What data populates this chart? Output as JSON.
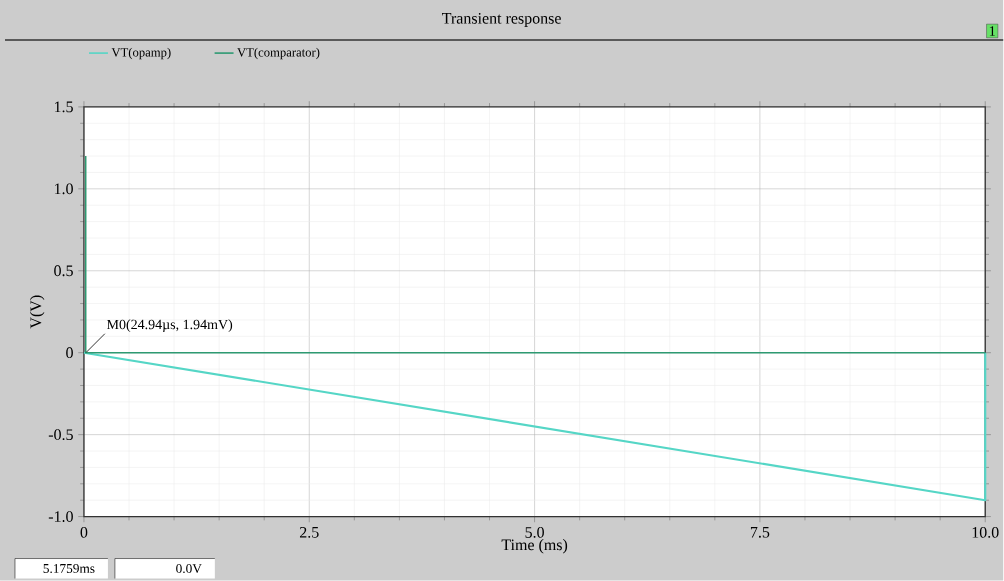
{
  "chart_data": {
    "type": "line",
    "title": "Transient response",
    "xlabel": "Time (ms)",
    "ylabel": "V(V)",
    "xlim": [
      0,
      10
    ],
    "ylim": [
      -1.0,
      1.5
    ],
    "xticks": [
      0,
      {
        "value": 2.5,
        "label": "2.5"
      },
      {
        "value": 5,
        "label": "5.0"
      },
      {
        "value": 7.5,
        "label": "7.5"
      },
      {
        "value": 10,
        "label": "10.0"
      }
    ],
    "yticks": [
      {
        "value": -1,
        "label": "-1.0"
      },
      -0.5,
      0,
      0.5,
      {
        "value": 1,
        "label": "1.0"
      },
      1.5
    ],
    "grid": true,
    "legend": "top left",
    "marker": "none",
    "line_style": "solid",
    "series": [
      {
        "name": "VT(opamp)",
        "color": "#55d6c6",
        "x": [
          0,
          10,
          10
        ],
        "values": [
          0,
          -0.9,
          0
        ]
      },
      {
        "name": "VT(comparator)",
        "color": "#2e9a72",
        "x": [
          0.02,
          0.02,
          10
        ],
        "values": [
          1.2,
          0,
          0
        ]
      }
    ],
    "annotations": [
      {
        "text": "M0(24.94µs, 1.94mV)",
        "x": 0.02494,
        "y": 0.00194
      },
      "5.1759ms",
      "0.0V",
      "1"
    ]
  }
}
